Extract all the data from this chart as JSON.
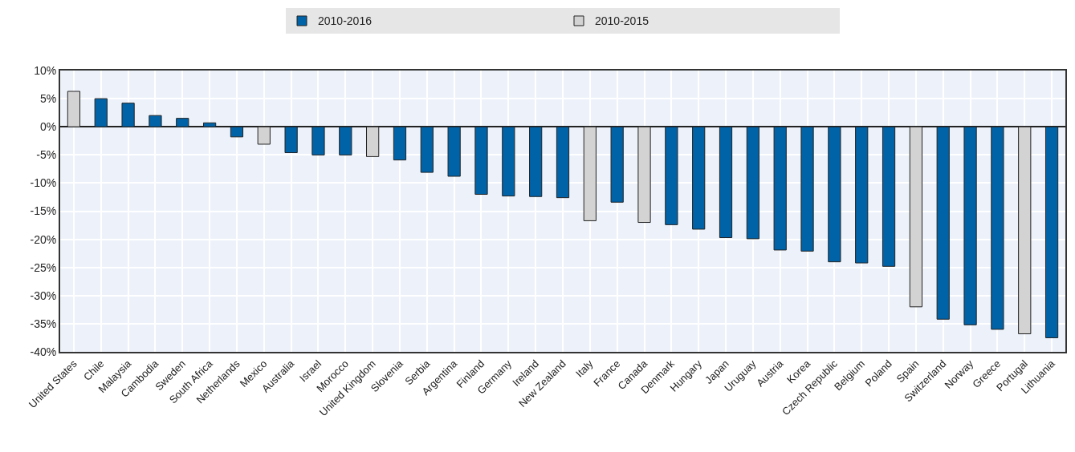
{
  "chart_data": {
    "type": "bar",
    "categories": [
      "United States",
      "Chile",
      "Malaysia",
      "Cambodia",
      "Sweden",
      "South Africa",
      "Netherlands",
      "Mexico",
      "Australia",
      "Israel",
      "Morocco",
      "United Kingdom",
      "Slovenia",
      "Serbia",
      "Argentina",
      "Finland",
      "Germany",
      "Ireland",
      "New Zealand",
      "Italy",
      "France",
      "Canada",
      "Denmark",
      "Hungary",
      "Japan",
      "Uruguay",
      "Austria",
      "Korea",
      "Czech Republic",
      "Belgium",
      "Poland",
      "Spain",
      "Switzerland",
      "Norway",
      "Greece",
      "Portugal",
      "Lithuania"
    ],
    "series": [
      {
        "name": "2010-2016",
        "color": "#0063a8",
        "values": [
          null,
          5.0,
          4.2,
          2.0,
          1.5,
          0.7,
          -1.8,
          null,
          -4.6,
          -5.0,
          -5.0,
          null,
          -5.9,
          -8.1,
          -8.8,
          -12.0,
          -12.3,
          -12.4,
          -12.6,
          null,
          -13.4,
          null,
          -17.4,
          -18.2,
          -19.7,
          -19.9,
          -21.9,
          -22.1,
          -24.0,
          -24.2,
          -24.8,
          null,
          -34.2,
          -35.2,
          -36.0,
          null,
          -37.5
        ]
      },
      {
        "name": "2010-2015",
        "color": "#d3d3d3",
        "values": [
          6.3,
          null,
          null,
          null,
          null,
          null,
          null,
          -3.1,
          null,
          null,
          null,
          -5.3,
          null,
          null,
          null,
          null,
          null,
          null,
          null,
          -16.7,
          null,
          -17.0,
          null,
          null,
          null,
          null,
          null,
          null,
          null,
          null,
          null,
          -32.0,
          null,
          null,
          null,
          -36.8,
          null
        ]
      }
    ],
    "ylim": [
      -40,
      10
    ],
    "yticks": [
      {
        "value": -40,
        "label": "-40%"
      },
      {
        "value": -35,
        "label": "-35%"
      },
      {
        "value": -30,
        "label": "-30%"
      },
      {
        "value": -25,
        "label": "-25%"
      },
      {
        "value": -20,
        "label": "-20%"
      },
      {
        "value": -15,
        "label": "-15%"
      },
      {
        "value": -10,
        "label": "-10%"
      },
      {
        "value": -5,
        "label": "-5%"
      },
      {
        "value": 0,
        "label": "0%"
      },
      {
        "value": 5,
        "label": "5%"
      },
      {
        "value": 10,
        "label": "10%"
      }
    ],
    "grid": true,
    "legend": "top"
  }
}
